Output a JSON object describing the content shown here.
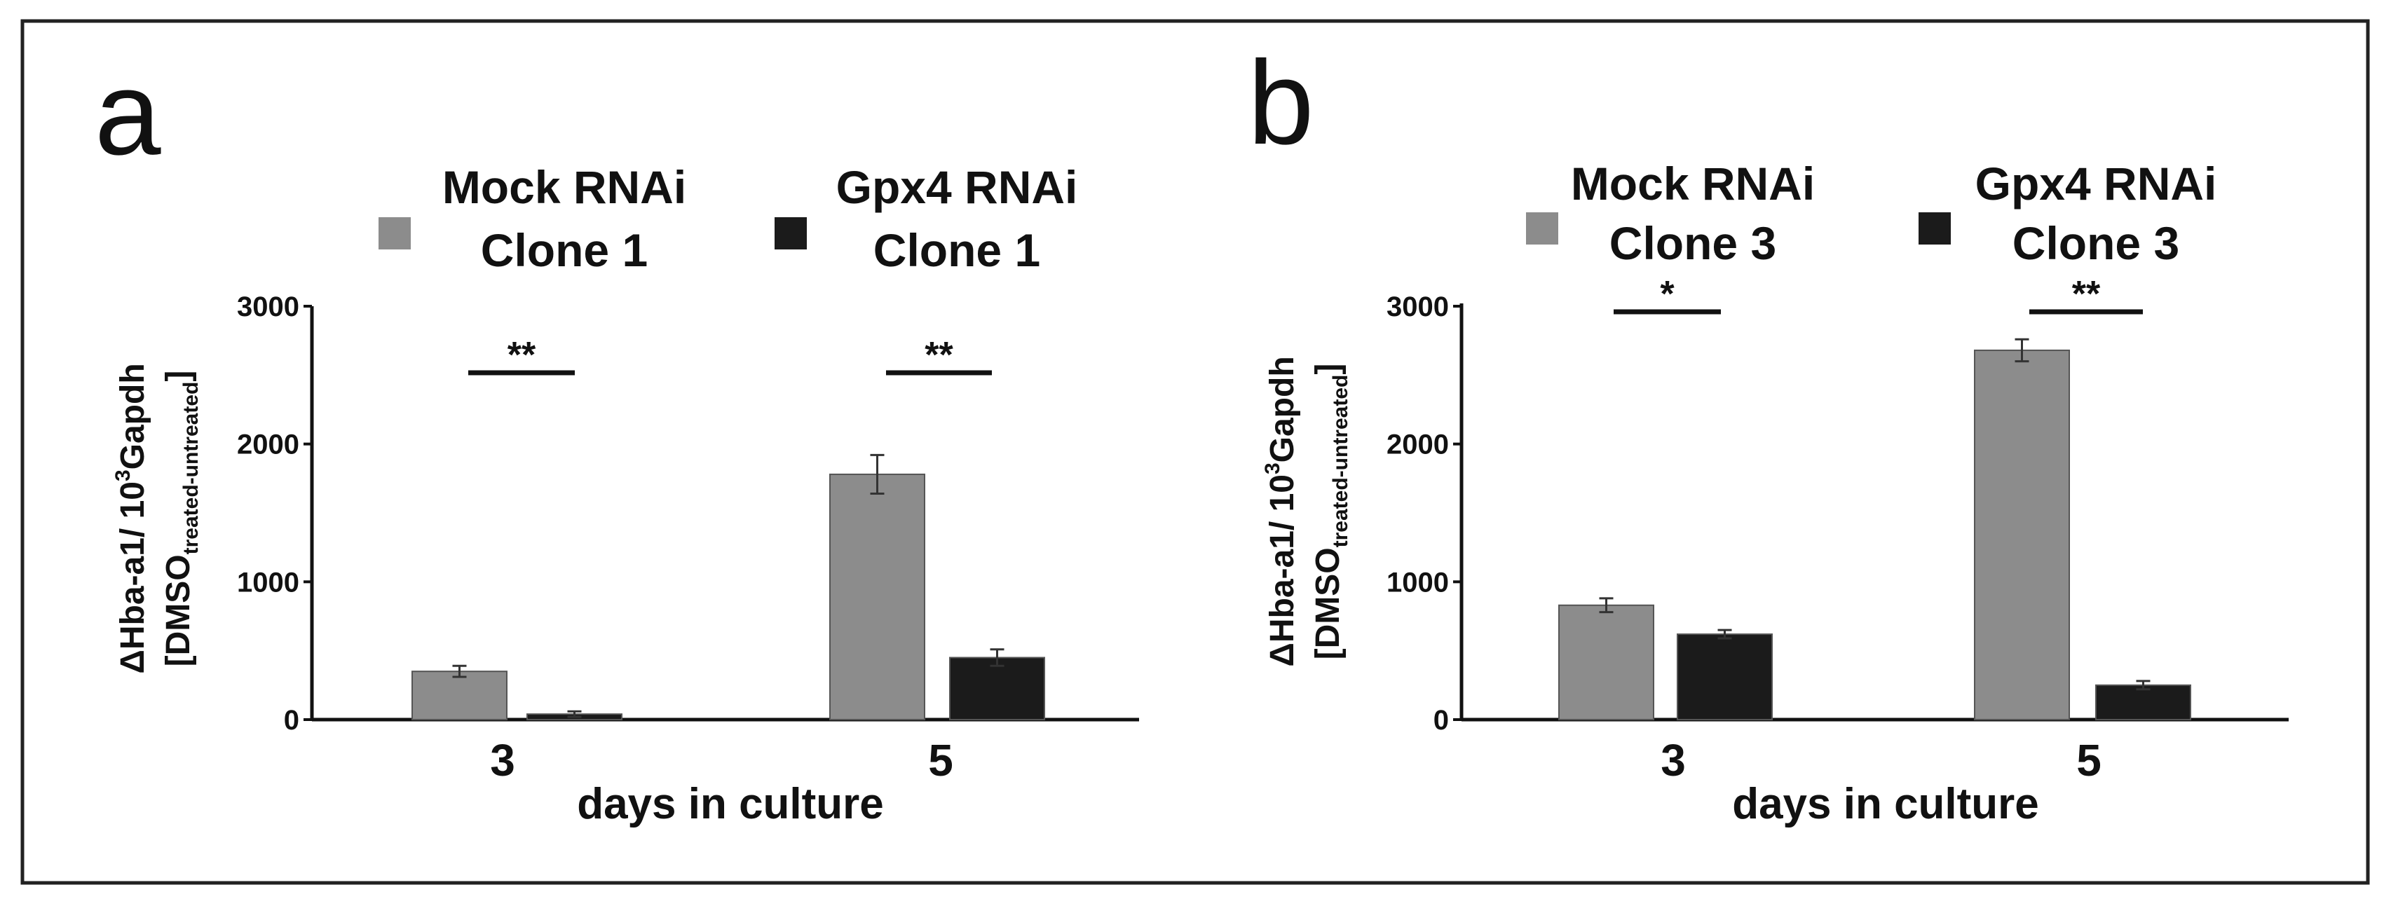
{
  "colors": {
    "mock": "#8c8c8c",
    "gpx4": "#1b1b1b",
    "axis": "#111111",
    "frame": "#222222"
  },
  "chart_data": [
    {
      "panel_label": "a",
      "type": "bar",
      "categories": [
        "3",
        "5"
      ],
      "series": [
        {
          "name_line1": "Mock RNAi",
          "name_line2": "Clone 1",
          "values": [
            350,
            1780
          ],
          "errors": [
            40,
            140
          ]
        },
        {
          "name_line1": "Gpx4 RNAi",
          "name_line2": "Clone 1",
          "values": [
            40,
            450
          ],
          "errors": [
            20,
            60
          ]
        }
      ],
      "ylim": [
        0,
        3000
      ],
      "yticks": [
        "0",
        "1000",
        "2000",
        "3000"
      ],
      "ylabel_line1": "ΔHba-a1/ 10",
      "ylabel_sup": "3",
      "ylabel_line1_end": "Gapdh",
      "ylabel_line2_open": "[DMSO",
      "ylabel_sub": "treated-untreated",
      "ylabel_line2_close": "]",
      "xlabel": "days in culture",
      "significance": [
        "**",
        "**"
      ]
    },
    {
      "panel_label": "b",
      "type": "bar",
      "categories": [
        "3",
        "5"
      ],
      "series": [
        {
          "name_line1": "Mock RNAi",
          "name_line2": "Clone 3",
          "values": [
            830,
            2680
          ],
          "errors": [
            50,
            80
          ]
        },
        {
          "name_line1": "Gpx4 RNAi",
          "name_line2": "Clone 3",
          "values": [
            620,
            250
          ],
          "errors": [
            30,
            30
          ]
        }
      ],
      "ylim": [
        0,
        3000
      ],
      "yticks": [
        "0",
        "1000",
        "2000",
        "3000"
      ],
      "ylabel_line1": "ΔHba-a1/ 10",
      "ylabel_sup": "3",
      "ylabel_line1_end": "Gapdh",
      "ylabel_line2_open": "[DMSO",
      "ylabel_sub": "treated-untreated",
      "ylabel_line2_close": "]",
      "xlabel": "days in culture",
      "significance": [
        "*",
        "**"
      ]
    }
  ]
}
